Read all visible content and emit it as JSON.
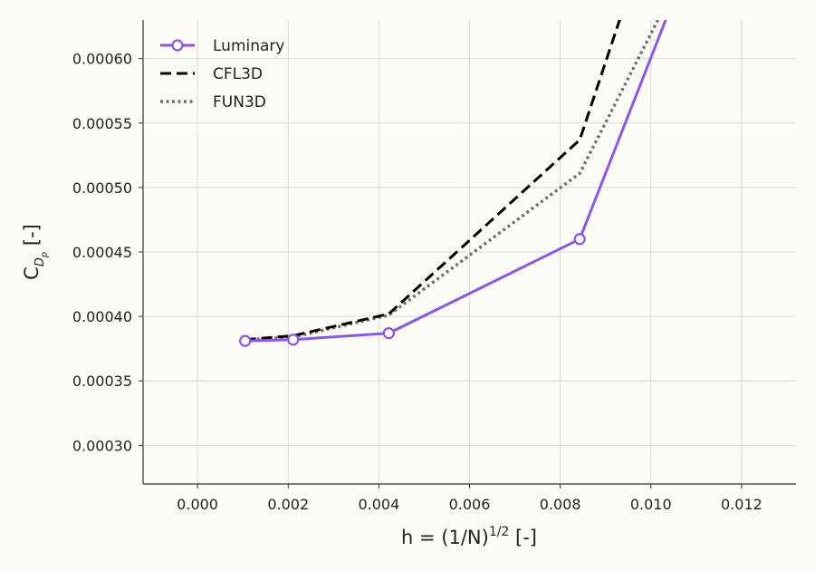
{
  "chart_data": {
    "type": "line",
    "xlabel": "h = (1/N)",
    "xlabel_sup": "1/2",
    "xlabel_suffix": " [-]",
    "ylabel_main": "C",
    "ylabel_sub": "D",
    "ylabel_subsub": "p",
    "ylabel_suffix": " [-]",
    "xlim": [
      -0.0012,
      0.0132
    ],
    "ylim": [
      0.00027,
      0.00063
    ],
    "xticks": [
      "0.000",
      "0.002",
      "0.004",
      "0.006",
      "0.008",
      "0.010",
      "0.012"
    ],
    "xtick_values": [
      0.0,
      0.002,
      0.004,
      0.006,
      0.008,
      0.01,
      0.012
    ],
    "yticks": [
      "0.00030",
      "0.00035",
      "0.00040",
      "0.00045",
      "0.00050",
      "0.00055",
      "0.00060"
    ],
    "ytick_values": [
      0.0003,
      0.00035,
      0.0004,
      0.00045,
      0.0005,
      0.00055,
      0.0006
    ],
    "grid": true,
    "legend_position": "top-left",
    "series": [
      {
        "name": "Luminary",
        "color": "#8b55f0",
        "style": "solid-circle-markers",
        "x": [
          0.00105,
          0.00211,
          0.00422,
          0.00843,
          0.01055
        ],
        "y": [
          0.000381,
          0.000382,
          0.000387,
          0.00046,
          0.00065
        ]
      },
      {
        "name": "CFL3D",
        "color": "#000000",
        "style": "dashed",
        "x": [
          0.00105,
          0.00211,
          0.00422,
          0.00843,
          0.0095
        ],
        "y": [
          0.000382,
          0.000385,
          0.000402,
          0.000537,
          0.00065
        ]
      },
      {
        "name": "FUN3D",
        "color": "#707070",
        "style": "dotted",
        "x": [
          0.00105,
          0.00211,
          0.00422,
          0.00843,
          0.0103
        ],
        "y": [
          0.000382,
          0.000384,
          0.000401,
          0.000511,
          0.00064
        ]
      }
    ]
  }
}
